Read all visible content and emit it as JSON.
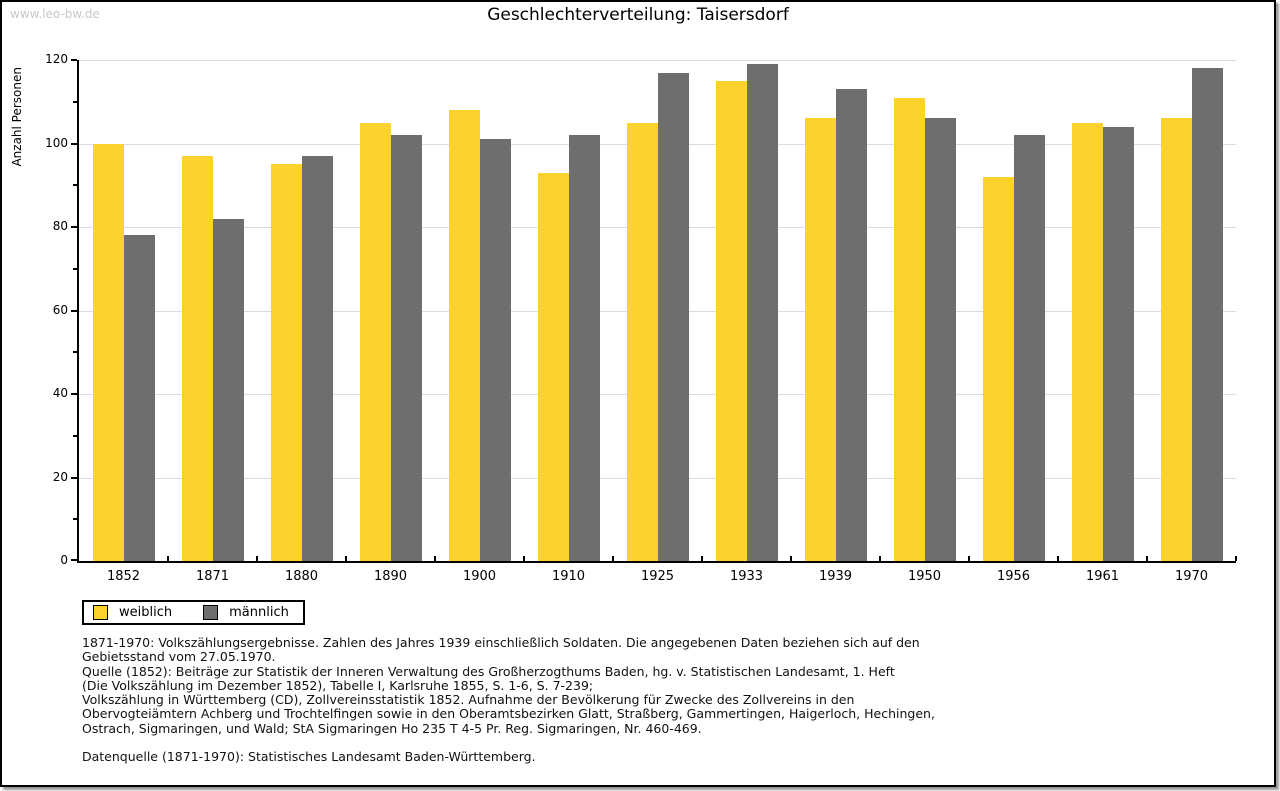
{
  "watermark": "www.leo-bw.de",
  "title": "Geschlechterverteilung: Taisersdorf",
  "chart_data": {
    "type": "bar",
    "title": "Geschlechterverteilung: Taisersdorf",
    "xlabel": "",
    "ylabel": "Anzahl Personen",
    "ylim": [
      0,
      120
    ],
    "ytick_major_interval": 20,
    "ytick_minor_interval": 10,
    "grid": true,
    "legend_position": "bottom-left",
    "categories": [
      "1852",
      "1871",
      "1880",
      "1890",
      "1900",
      "1910",
      "1925",
      "1933",
      "1939",
      "1950",
      "1956",
      "1961",
      "1970"
    ],
    "series": [
      {
        "name": "weiblich",
        "color": "#FCD32D",
        "values": [
          100,
          97,
          95,
          105,
          108,
          93,
          105,
          115,
          106,
          111,
          92,
          105,
          106
        ]
      },
      {
        "name": "männlich",
        "color": "#6E6E6E",
        "values": [
          78,
          82,
          97,
          102,
          101,
          102,
          117,
          119,
          113,
          106,
          102,
          104,
          118
        ]
      }
    ]
  },
  "colors": {
    "weiblich": "#FCD32D",
    "maennlich": "#6E6E6E",
    "gridline": "#dcdcdc",
    "watermark": "#c8c8c8",
    "frame_border": "#000000"
  },
  "footnote_lines": [
    "1871-1970: Volkszählungsergebnisse. Zahlen des Jahres 1939 einschließlich Soldaten. Die angegebenen Daten beziehen sich auf den",
    "Gebietsstand vom 27.05.1970.",
    "Quelle (1852): Beiträge zur Statistik der Inneren Verwaltung des Großherzogthums Baden, hg. v. Statistischen Landesamt, 1. Heft",
    "(Die Volkszählung im Dezember 1852), Tabelle I, Karlsruhe 1855, S. 1-6, S. 7-239;",
    "Volkszählung in Württemberg (CD), Zollvereinsstatistik 1852. Aufnahme der Bevölkerung für Zwecke des Zollvereins in den",
    "Obervogteiämtern Achberg und Trochtelfingen sowie in den Oberamtsbezirken Glatt, Straßberg, Gammertingen, Haigerloch, Hechingen,",
    "Ostrach, Sigmaringen, und Wald; StA Sigmaringen Ho 235 T 4-5 Pr. Reg. Sigmaringen, Nr. 460-469.",
    "",
    "Datenquelle (1871-1970): Statistisches Landesamt Baden-Württemberg."
  ]
}
